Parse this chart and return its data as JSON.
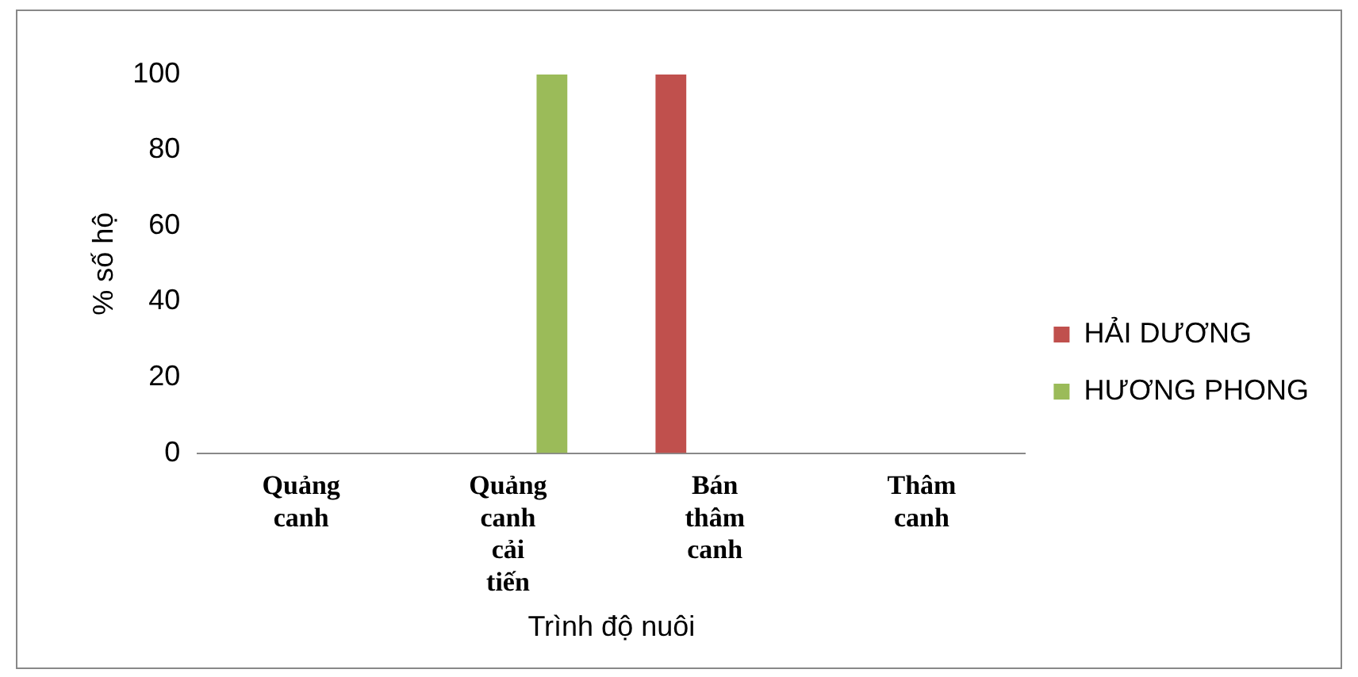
{
  "chart_data": {
    "type": "bar",
    "xlabel": "Trình độ nuôi",
    "ylabel": "% số hộ",
    "categories": [
      "Quảng canh",
      "Quảng canh cải tiến",
      "Bán thâm canh",
      "Thâm canh"
    ],
    "series": [
      {
        "name": "HẢI DƯƠNG",
        "color": "#c0504d",
        "values": [
          0,
          0,
          100,
          0
        ]
      },
      {
        "name": "HƯƠNG PHONG",
        "color": "#9bbb59",
        "values": [
          0,
          100,
          0,
          0
        ]
      }
    ],
    "ylim": [
      0,
      100
    ],
    "yticks": [
      0,
      20,
      40,
      60,
      80,
      100
    ],
    "grid": false,
    "legend": "right"
  }
}
